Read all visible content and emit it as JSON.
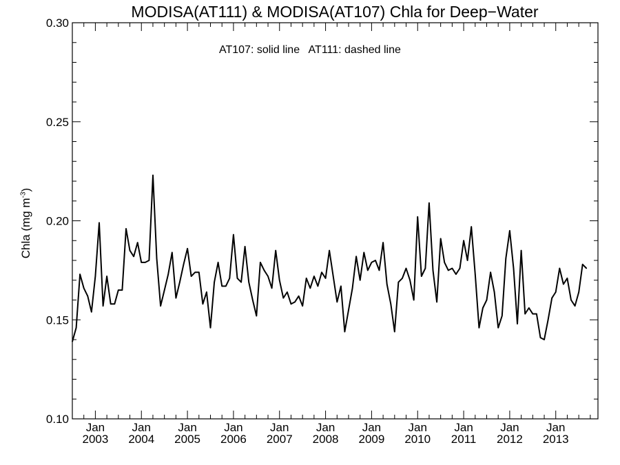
{
  "chart_data": {
    "type": "line",
    "title": "MODISA(AT111) & MODISA(AT107)  Chla for Deep−Water",
    "annotation": "AT107: solid line   AT111: dashed line",
    "ylabel": "Chla (mg m",
    "ylabel_exponent": "-3",
    "ylabel_close": ")",
    "xlabel": "",
    "ylim": [
      0.1,
      0.3
    ],
    "yticks": [
      "0.10",
      "0.15",
      "0.20",
      "0.25",
      "0.30"
    ],
    "xlim": [
      "2002-07",
      "2013-12"
    ],
    "xticks": [
      {
        "month": "Jan",
        "year": "2003",
        "date": "2003-01"
      },
      {
        "month": "Jan",
        "year": "2004",
        "date": "2004-01"
      },
      {
        "month": "Jan",
        "year": "2005",
        "date": "2005-01"
      },
      {
        "month": "Jan",
        "year": "2006",
        "date": "2006-01"
      },
      {
        "month": "Jan",
        "year": "2007",
        "date": "2007-01"
      },
      {
        "month": "Jan",
        "year": "2008",
        "date": "2008-01"
      },
      {
        "month": "Jan",
        "year": "2009",
        "date": "2009-01"
      },
      {
        "month": "Jan",
        "year": "2010",
        "date": "2010-01"
      },
      {
        "month": "Jan",
        "year": "2011",
        "date": "2011-01"
      },
      {
        "month": "Jan",
        "year": "2012",
        "date": "2012-01"
      },
      {
        "month": "Jan",
        "year": "2013",
        "date": "2013-01"
      }
    ],
    "grid": false,
    "series": [
      {
        "style": "solid",
        "color": "#000000",
        "start": "2002-07",
        "values": [
          0.139,
          0.146,
          0.173,
          0.166,
          0.162,
          0.154,
          0.172,
          0.199,
          0.157,
          0.172,
          0.158,
          0.158,
          0.165,
          0.165,
          0.196,
          0.185,
          0.182,
          0.189,
          0.179,
          0.179,
          0.18,
          0.223,
          0.181,
          0.157,
          0.165,
          0.173,
          0.184,
          0.161,
          0.169,
          0.178,
          0.186,
          0.172,
          0.174,
          0.174,
          0.158,
          0.164,
          0.146,
          0.169,
          0.179,
          0.167,
          0.167,
          0.171,
          0.193,
          0.171,
          0.169,
          0.187,
          0.169,
          0.16,
          0.152,
          0.179,
          0.175,
          0.172,
          0.166,
          0.185,
          0.17,
          0.161,
          0.164,
          0.158,
          0.159,
          0.162,
          0.157,
          0.171,
          0.166,
          0.172,
          0.167,
          0.174,
          0.171,
          0.185,
          0.172,
          0.159,
          0.167,
          0.144,
          0.155,
          0.166,
          0.182,
          0.17,
          0.184,
          0.175,
          0.179,
          0.18,
          0.175,
          0.189,
          0.168,
          0.158,
          0.144,
          0.169,
          0.171,
          0.176,
          0.17,
          0.16,
          0.202,
          0.172,
          0.176,
          0.209,
          0.175,
          0.159,
          0.191,
          0.179,
          0.175,
          0.176,
          0.173,
          0.176,
          0.19,
          0.18,
          0.197,
          0.173,
          0.146,
          0.156,
          0.16,
          0.174,
          0.164,
          0.146,
          0.152,
          0.181,
          0.195,
          0.176,
          0.148,
          0.185,
          0.153,
          0.156,
          0.153,
          0.153,
          0.141,
          0.14,
          0.15,
          0.161,
          0.164,
          0.176,
          0.168,
          0.171,
          0.16,
          0.157,
          0.164,
          0.178,
          0.176
        ]
      }
    ]
  }
}
